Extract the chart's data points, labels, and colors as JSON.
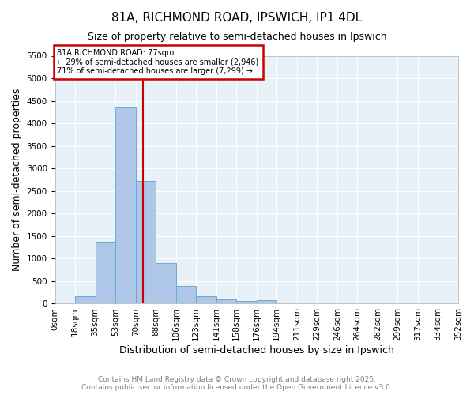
{
  "title": "81A, RICHMOND ROAD, IPSWICH, IP1 4DL",
  "subtitle": "Size of property relative to semi-detached houses in Ipswich",
  "xlabel": "Distribution of semi-detached houses by size in Ipswich",
  "ylabel": "Number of semi-detached properties",
  "bar_color": "#aec6e8",
  "bar_edge_color": "#6aaad4",
  "background_color": "#e8f0f8",
  "grid_color": "white",
  "bins": [
    0,
    17.6,
    35.2,
    52.8,
    70.4,
    88.0,
    105.6,
    123.2,
    140.8,
    158.4,
    176.0,
    193.6,
    211.2,
    228.8,
    246.4,
    264.0,
    281.6,
    299.2,
    316.8,
    334.4,
    352.0
  ],
  "bin_labels": [
    "0sqm",
    "18sqm",
    "35sqm",
    "53sqm",
    "70sqm",
    "88sqm",
    "106sqm",
    "123sqm",
    "141sqm",
    "158sqm",
    "176sqm",
    "194sqm",
    "211sqm",
    "229sqm",
    "246sqm",
    "264sqm",
    "282sqm",
    "299sqm",
    "317sqm",
    "334sqm",
    "352sqm"
  ],
  "counts": [
    30,
    170,
    1380,
    4350,
    2720,
    900,
    400,
    170,
    100,
    60,
    70,
    0,
    0,
    0,
    0,
    0,
    0,
    0,
    0,
    0
  ],
  "property_size": 77,
  "property_label": "81A RICHMOND ROAD: 77sqm",
  "pct_smaller": 29,
  "pct_larger": 71,
  "count_smaller": 2946,
  "count_larger": 7299,
  "vline_color": "#cc0000",
  "annotation_box_color": "#cc0000",
  "ylim": [
    0,
    5500
  ],
  "yticks": [
    0,
    500,
    1000,
    1500,
    2000,
    2500,
    3000,
    3500,
    4000,
    4500,
    5000,
    5500
  ],
  "footer_line1": "Contains HM Land Registry data © Crown copyright and database right 2025.",
  "footer_line2": "Contains public sector information licensed under the Open Government Licence v3.0.",
  "title_fontsize": 11,
  "subtitle_fontsize": 9,
  "axis_label_fontsize": 9,
  "tick_fontsize": 7.5,
  "footer_fontsize": 6.5
}
